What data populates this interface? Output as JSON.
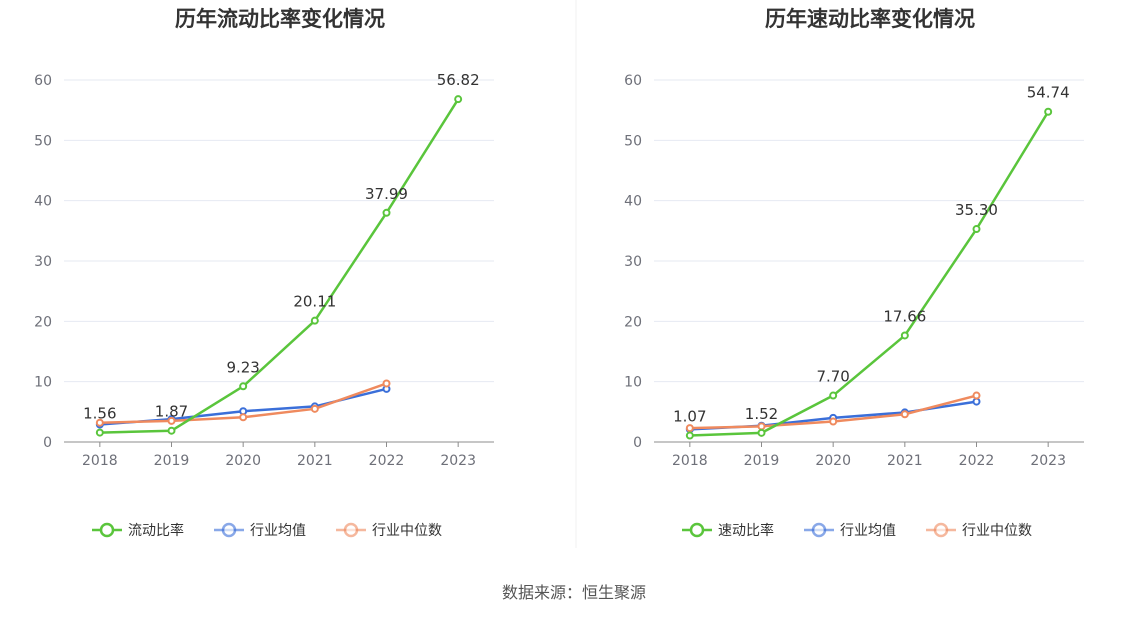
{
  "colors": {
    "company": "#5ac53c",
    "industry_avg": "#3b6fd9",
    "industry_median": "#ef8a5e",
    "grid": "#e6e9f2",
    "axis": "#8c8c8c"
  },
  "source": "数据来源：恒生聚源",
  "chart_data": [
    {
      "type": "line",
      "title": "历年流动比率变化情况",
      "x": [
        "2018",
        "2019",
        "2020",
        "2021",
        "2022",
        "2023"
      ],
      "ylim": [
        0,
        60
      ],
      "yticks": [
        0,
        10,
        20,
        30,
        40,
        50,
        60
      ],
      "grid": true,
      "legend_position": "bottom",
      "series": [
        {
          "name": "流动比率",
          "key": "company",
          "values": [
            1.56,
            1.87,
            9.23,
            20.11,
            37.99,
            56.82
          ],
          "labels": [
            "1.56",
            "1.87",
            "9.23",
            "20.11",
            "37.99",
            "56.82"
          ]
        },
        {
          "name": "行业均值",
          "key": "industry_avg",
          "values": [
            2.9,
            3.8,
            5.1,
            5.9,
            8.8,
            null
          ],
          "labels": null
        },
        {
          "name": "行业中位数",
          "key": "industry_median",
          "values": [
            3.2,
            3.5,
            4.1,
            5.5,
            9.7,
            null
          ],
          "labels": null
        }
      ]
    },
    {
      "type": "line",
      "title": "历年速动比率变化情况",
      "x": [
        "2018",
        "2019",
        "2020",
        "2021",
        "2022",
        "2023"
      ],
      "ylim": [
        0,
        60
      ],
      "yticks": [
        0,
        10,
        20,
        30,
        40,
        50,
        60
      ],
      "grid": true,
      "legend_position": "bottom",
      "series": [
        {
          "name": "速动比率",
          "key": "company",
          "values": [
            1.07,
            1.52,
            7.7,
            17.66,
            35.3,
            54.74
          ],
          "labels": [
            "1.07",
            "1.52",
            "7.70",
            "17.66",
            "35.30",
            "54.74"
          ]
        },
        {
          "name": "行业均值",
          "key": "industry_avg",
          "values": [
            2.1,
            2.7,
            4.0,
            4.9,
            6.7,
            null
          ],
          "labels": null
        },
        {
          "name": "行业中位数",
          "key": "industry_median",
          "values": [
            2.3,
            2.6,
            3.4,
            4.6,
            7.7,
            null
          ],
          "labels": null
        }
      ]
    }
  ]
}
